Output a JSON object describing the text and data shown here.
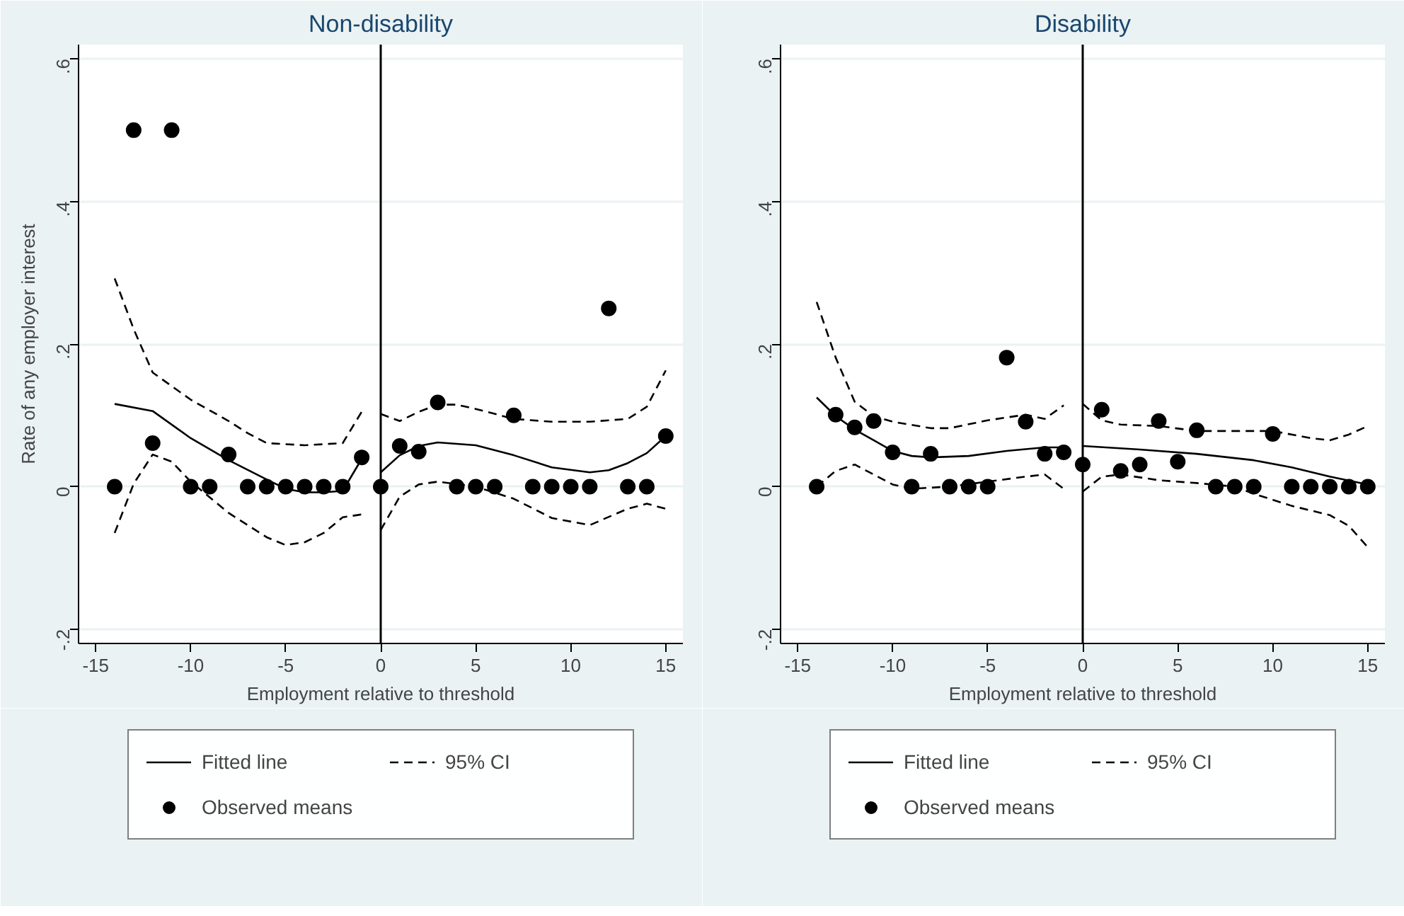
{
  "chart_data": [
    {
      "type": "line",
      "title": "Non-disability",
      "xlabel": "Employment relative to threshold",
      "ylabel": "Rate of any employer interest",
      "xlim": [
        -15.9,
        15.9
      ],
      "ylim": [
        -0.22,
        0.62
      ],
      "xticks": [
        -15,
        -10,
        -5,
        0,
        5,
        10,
        15
      ],
      "yticks": [
        {
          "value": -0.2,
          "label": "-.2"
        },
        0,
        {
          "value": 0.2,
          "label": ".2"
        },
        {
          "value": 0.4,
          "label": ".4"
        },
        {
          "value": 0.6,
          "label": ".6"
        }
      ],
      "grid": "y",
      "legend": "bottom",
      "ref_lines": [
        {
          "axis": "x",
          "value": 0,
          "color": "#000000"
        }
      ],
      "series": [
        {
          "name": "Fitted line",
          "line_style": "solid",
          "color": "#000000",
          "x": [
            -14,
            -12,
            -10,
            -8,
            -6,
            -5,
            -4,
            -3,
            -2,
            -1,
            -0.5,
            0,
            1,
            2,
            3,
            5,
            7,
            9,
            11,
            12,
            13,
            14,
            15
          ],
          "values": [
            0.116,
            0.106,
            0.068,
            0.037,
            0.01,
            -0.003,
            -0.008,
            -0.008,
            -0.006,
            0.039,
            null,
            0.02,
            0.044,
            0.057,
            0.062,
            0.058,
            0.044,
            0.027,
            0.02,
            0.023,
            0.033,
            0.047,
            0.071
          ]
        },
        {
          "name": "95% CI",
          "line_style": "dashed",
          "color": "#000000",
          "x": [
            -14,
            -13,
            -12,
            -10,
            -8,
            -7,
            -6,
            -4,
            -2,
            -1,
            -0.5,
            0,
            1,
            2,
            3,
            4,
            5,
            7,
            9,
            11,
            13,
            14,
            15
          ],
          "values": [
            0.292,
            0.221,
            0.16,
            0.122,
            0.092,
            0.075,
            0.061,
            0.058,
            0.061,
            0.105,
            null,
            0.102,
            0.092,
            0.105,
            0.115,
            0.115,
            0.109,
            0.095,
            0.091,
            0.091,
            0.095,
            0.112,
            0.163
          ]
        },
        {
          "line_style": "dashed",
          "color": "#000000",
          "x": [
            -14,
            -13,
            -12,
            -11,
            -10,
            -8,
            -6,
            -5,
            -4,
            -3,
            -2,
            -1,
            -0.5,
            0,
            1,
            2,
            3,
            5,
            7,
            9,
            11,
            13,
            14,
            15
          ],
          "values": [
            -0.065,
            0.004,
            0.045,
            0.035,
            0.007,
            -0.037,
            -0.071,
            -0.082,
            -0.078,
            -0.065,
            -0.043,
            -0.039,
            null,
            -0.061,
            -0.014,
            0.003,
            0.007,
            0.0,
            -0.017,
            -0.044,
            -0.054,
            -0.031,
            -0.024,
            -0.031
          ]
        },
        {
          "name": "Observed means",
          "type": "scatter",
          "marker": "circle",
          "color": "#000000",
          "x": [
            -14,
            -13,
            -12,
            -11,
            -10,
            -9,
            -8,
            -7,
            -6,
            -5,
            -4,
            -3,
            -2,
            -1,
            0,
            1,
            2,
            3,
            4,
            5,
            6,
            7,
            8,
            9,
            10,
            11,
            12,
            13,
            14,
            15
          ],
          "values": [
            0,
            0.5,
            0.061,
            0.5,
            0,
            0,
            0.045,
            0,
            0,
            0,
            0,
            0,
            0,
            0.041,
            0,
            0.057,
            0.049,
            0.118,
            0,
            0,
            0,
            0.1,
            0,
            0,
            0,
            0,
            0.25,
            0,
            0,
            0.071
          ]
        }
      ]
    },
    {
      "type": "line",
      "title": "Disability",
      "xlabel": "Employment relative to threshold",
      "xlim": [
        -15.9,
        15.9
      ],
      "ylim": [
        -0.22,
        0.62
      ],
      "xticks": [
        -15,
        -10,
        -5,
        0,
        5,
        10,
        15
      ],
      "yticks": [
        {
          "value": -0.2,
          "label": "-.2"
        },
        0,
        {
          "value": 0.2,
          "label": ".2"
        },
        {
          "value": 0.4,
          "label": ".4"
        },
        {
          "value": 0.6,
          "label": ".6"
        }
      ],
      "grid": "y",
      "legend": "bottom",
      "ref_lines": [
        {
          "axis": "x",
          "value": 0,
          "color": "#000000"
        }
      ],
      "series": [
        {
          "name": "Fitted line",
          "line_style": "solid",
          "color": "#000000",
          "x": [
            -14,
            -13,
            -12,
            -11,
            -10,
            -9,
            -8,
            -6,
            -4,
            -2,
            -1,
            -0.5,
            0,
            3,
            6,
            9,
            11,
            13,
            15
          ],
          "values": [
            0.125,
            0.099,
            0.08,
            0.065,
            0.05,
            0.043,
            0.041,
            0.043,
            0.05,
            0.055,
            0.055,
            null,
            0.057,
            0.052,
            0.046,
            0.037,
            0.027,
            0.014,
            0.003
          ]
        },
        {
          "name": "95% CI",
          "line_style": "dashed",
          "color": "#000000",
          "x": [
            -14,
            -13,
            -12,
            -11,
            -10,
            -8,
            -7,
            -5,
            -3,
            -2,
            -1,
            -0.5,
            0,
            1,
            2,
            4,
            6,
            8,
            10,
            12,
            13,
            14,
            15
          ],
          "values": [
            0.259,
            0.181,
            0.119,
            0.099,
            0.091,
            0.082,
            0.082,
            0.093,
            0.101,
            0.095,
            0.114,
            null,
            0.116,
            0.093,
            0.087,
            0.085,
            0.078,
            0.078,
            0.078,
            0.068,
            0.065,
            0.073,
            0.085
          ]
        },
        {
          "line_style": "dashed",
          "color": "#000000",
          "x": [
            -14,
            -13,
            -12,
            -11,
            -10,
            -9,
            -7,
            -5,
            -3,
            -2,
            -1,
            -0.5,
            0,
            1,
            2,
            4,
            6,
            8,
            9,
            11,
            13,
            14,
            15
          ],
          "values": [
            0,
            0.022,
            0.031,
            0.017,
            0.003,
            -0.003,
            0,
            0.007,
            0.014,
            0.017,
            -0.003,
            null,
            -0.007,
            0.014,
            0.017,
            0.009,
            0.005,
            0,
            -0.01,
            -0.027,
            -0.04,
            -0.055,
            -0.085
          ]
        },
        {
          "name": "Observed means",
          "type": "scatter",
          "marker": "circle",
          "color": "#000000",
          "x": [
            -14,
            -13,
            -12,
            -11,
            -10,
            -9,
            -8,
            -7,
            -6,
            -5,
            -4,
            -3,
            -2,
            -1,
            0,
            1,
            2,
            3,
            4,
            5,
            6,
            7,
            8,
            9,
            10,
            11,
            12,
            13,
            14,
            15
          ],
          "values": [
            0,
            0.101,
            0.083,
            0.092,
            0.048,
            0,
            0.046,
            0,
            0,
            0,
            0.181,
            0.091,
            0.046,
            0.048,
            0.031,
            0.108,
            0.022,
            0.031,
            0.092,
            0.035,
            0.079,
            0,
            0,
            0,
            0.074,
            0,
            0,
            0,
            0,
            0
          ]
        }
      ]
    }
  ]
}
